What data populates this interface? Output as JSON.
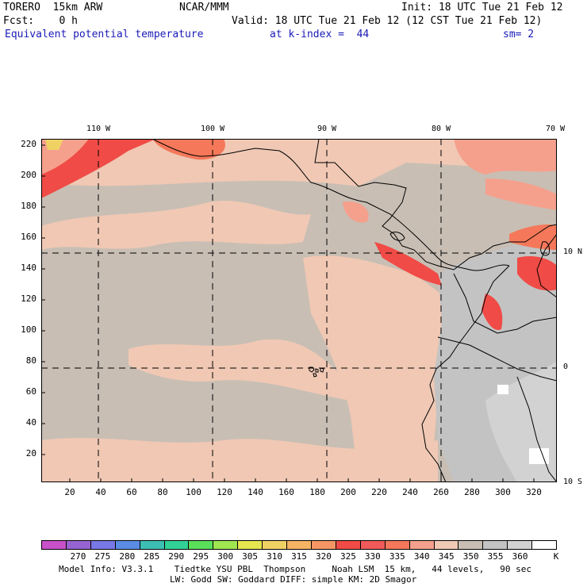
{
  "header": {
    "model": "TORERO  15km ARW",
    "center": "NCAR/MMM",
    "init": "Init: 18 UTC Tue 21 Feb 12",
    "fcst": "Fcst:    0 h",
    "valid": "Valid: 18 UTC Tue 21 Feb 12 (12 CST Tue 21 Feb 12)",
    "field": "Equivalent potential temperature",
    "level": "at k-index =  44",
    "smooth": "sm= 2"
  },
  "map": {
    "lon_labels": [
      "110 W",
      "100 W",
      "90 W",
      "80 W",
      "70 W"
    ],
    "lat_labels": [
      "10 N",
      "0",
      "10 S"
    ],
    "y_ticks": [
      "220",
      "200",
      "180",
      "160",
      "140",
      "120",
      "100",
      "80",
      "60",
      "40",
      "20"
    ],
    "x_ticks": [
      "20",
      "40",
      "60",
      "80",
      "100",
      "120",
      "140",
      "160",
      "180",
      "200",
      "220",
      "240",
      "260",
      "280",
      "300",
      "320"
    ]
  },
  "colorbar": {
    "colors": [
      "#c850c8",
      "#9664d2",
      "#7878e6",
      "#5a8ce6",
      "#3cbeb4",
      "#32d296",
      "#5ae05a",
      "#a0e650",
      "#e6e650",
      "#f0d264",
      "#f5b464",
      "#f59664",
      "#f04b46",
      "#f05a5a",
      "#f5785a",
      "#f5a08c",
      "#f0c8b4",
      "#c8beb4",
      "#c3c3c3",
      "#d2d2d2",
      "#ffffff"
    ],
    "labels": [
      "270",
      "275",
      "280",
      "285",
      "290",
      "295",
      "300",
      "305",
      "310",
      "315",
      "320",
      "325",
      "330",
      "335",
      "340",
      "345",
      "350",
      "355",
      "360"
    ],
    "unit": "K"
  },
  "footer": {
    "line1": "Model Info: V3.3.1    Tiedtke YSU PBL  Thompson     Noah LSM  15 km,   44 levels,   90 sec",
    "line2": "LW: Godd SW: Goddard DIFF: simple KM: 2D Smagor"
  }
}
